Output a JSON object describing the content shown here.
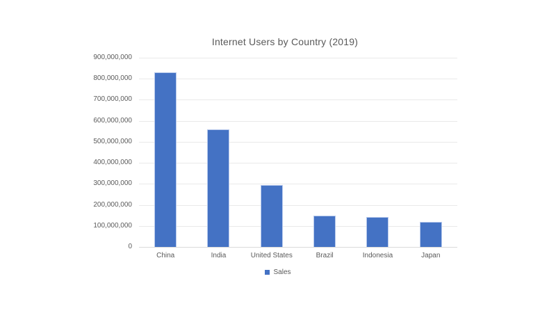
{
  "chart_data": {
    "type": "bar",
    "title": "Internet Users by Country (2019)",
    "categories": [
      "China",
      "India",
      "United States",
      "Brazil",
      "Indonesia",
      "Japan"
    ],
    "series": [
      {
        "name": "Sales",
        "values": [
          829000000,
          560000000,
          293000000,
          149000000,
          143000000,
          118000000
        ]
      }
    ],
    "xlabel": "",
    "ylabel": "",
    "y_axis": {
      "min": 0,
      "max": 900000000,
      "tick_step": 100000000,
      "tick_labels": [
        "0",
        "100,000,000",
        "200,000,000",
        "300,000,000",
        "400,000,000",
        "500,000,000",
        "600,000,000",
        "700,000,000",
        "800,000,000",
        "900,000,000"
      ]
    },
    "grid": true,
    "legend": {
      "position": "bottom",
      "label": "Sales"
    },
    "colors": {
      "bar_fill": "#4472C4",
      "bar_border": "#b7c9ec",
      "gridline": "#e9e9e9",
      "axis_line": "#d9d9d9",
      "text": "#595959",
      "background": "#ffffff"
    }
  }
}
